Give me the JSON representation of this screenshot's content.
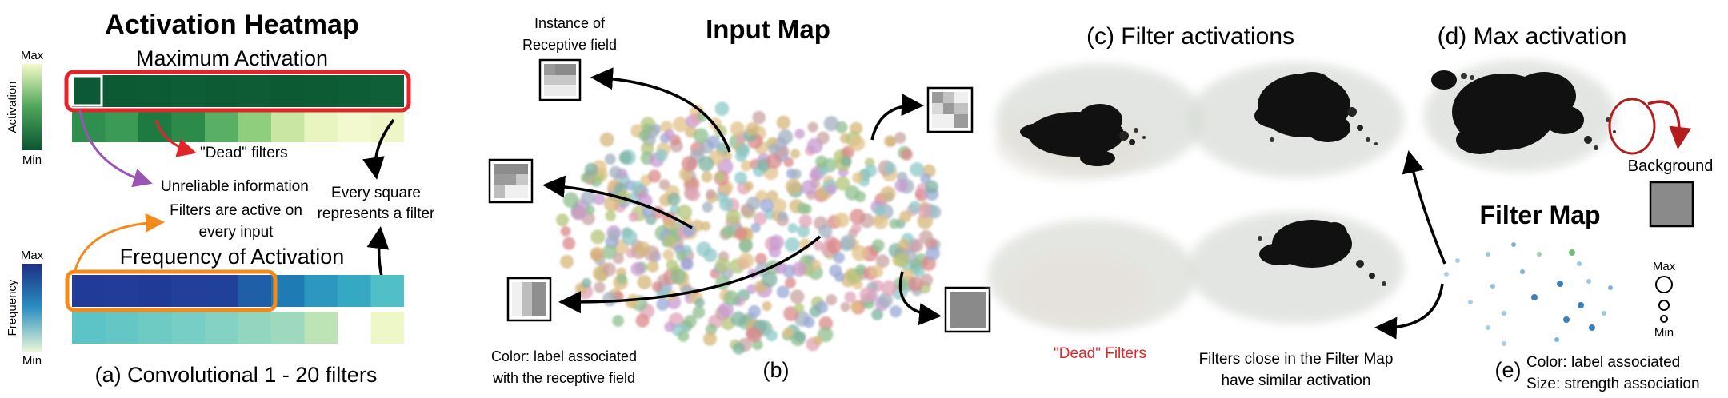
{
  "heatmap": {
    "title": "Activation Heatmap",
    "max_subtitle": "Maximum Activation",
    "freq_subtitle": "Frequency of Activation",
    "act_scale": {
      "label": "Activation",
      "max": "Max",
      "min": "Min"
    },
    "freq_scale": {
      "label": "Frequency",
      "max": "Max",
      "min": "Min"
    },
    "dead_filters": "\"Dead\" filters",
    "unreliable": "Unreliable information",
    "active_every_line1": "Filters are active on",
    "active_every_line2": "every input",
    "every_square_line1": "Every square",
    "every_square_line2": "represents a filter",
    "caption": "(a) Convolutional 1 - 20 filters",
    "max_row1": [
      "#0c5a35",
      "#0b5a34",
      "#0c5b35",
      "#0d5d37",
      "#0c5b35",
      "#0d5c36",
      "#0b5a34",
      "#0c5b35",
      "#0d5d36",
      "#0f6038"
    ],
    "max_row2": [
      "#2f8f4e",
      "#3b9a55",
      "#1f7a41",
      "#2c8a4b",
      "#59b064",
      "#8fce7c",
      "#c9e6a3",
      "#e9f5c0",
      "#f3f9cf",
      "#eef6c8"
    ],
    "freq_row1": [
      "#203c98",
      "#213d99",
      "#1f3b96",
      "#223f9a",
      "#21409a",
      "#1e5fa8",
      "#1f7bb4",
      "#2c98c0",
      "#35a8c4",
      "#51bfc6"
    ],
    "freq_row2": [
      "#5cc3c6",
      "#64c6c5",
      "#6ecbc4",
      "#77cec4",
      "#84d2c3",
      "#92d6c0",
      "#9fd9bd",
      "#bce4b5",
      "#ffffff",
      "#edf7c7"
    ]
  },
  "input_map": {
    "title": "Input Map",
    "instance_line1": "Instance of",
    "instance_line2": "Receptive field",
    "color_line1": "Color: label associated",
    "color_line2": "with the receptive field",
    "caption": "(b)"
  },
  "filter_activations": {
    "title": "(c) Filter activations",
    "dead_label": "\"Dead\" Filters",
    "close_line1": "Filters close in the Filter Map",
    "close_line2": "have similar activation"
  },
  "max_activation": {
    "title": "(d) Max activation",
    "background_label": "Background"
  },
  "filter_map": {
    "title": "Filter Map",
    "max_label": "Max",
    "min_label": "Min",
    "color_line": "Color: label associated",
    "size_line": "Size: strength association",
    "caption": "(e)"
  },
  "colors": {
    "red_highlight": "#e0262b",
    "orange_highlight": "#f28a1c",
    "purple_arrow": "#9a55b3",
    "dead_text": "#e0262b",
    "dark_red_arrow": "#b31d1d"
  }
}
